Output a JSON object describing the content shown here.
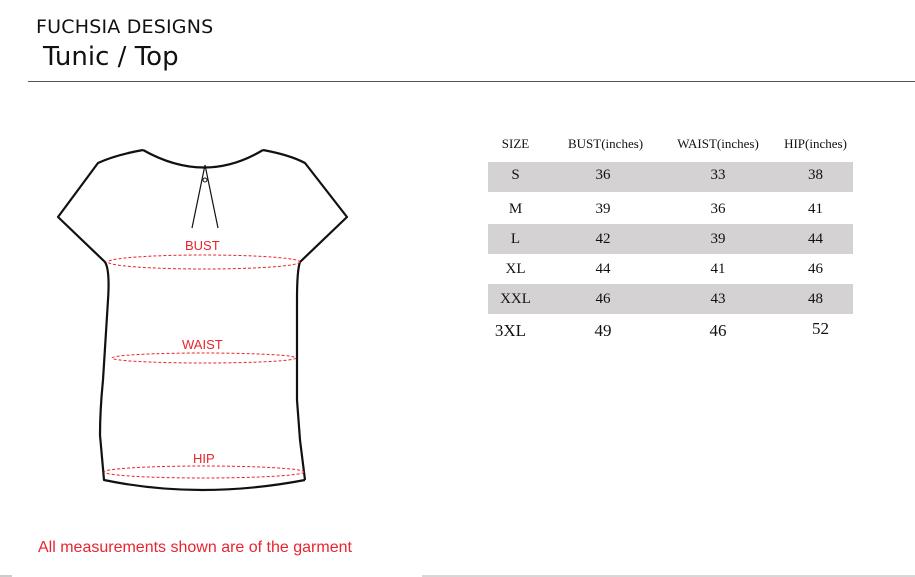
{
  "header": {
    "brand": "FUCHSIA DESIGNS",
    "product": "Tunic / Top"
  },
  "diagram": {
    "labels": {
      "bust": "BUST",
      "waist": "WAIST",
      "hip": "HIP"
    },
    "accent_color": "#e8252f"
  },
  "table": {
    "columns": [
      "SIZE",
      "BUST(inches)",
      "WAIST(inches)",
      "HIP(inches)"
    ],
    "rows": [
      [
        "S",
        "36",
        "33",
        "38"
      ],
      [
        "M",
        "39",
        "36",
        "41"
      ],
      [
        "L",
        "42",
        "39",
        "44"
      ],
      [
        "XL",
        "44",
        "41",
        "46"
      ],
      [
        "XXL",
        "46",
        "43",
        "48"
      ],
      [
        "3XL",
        "49",
        "46",
        "52"
      ]
    ],
    "shade_color": "#d4d2d3"
  },
  "footer": {
    "note": "All measurements shown are of the garment"
  }
}
